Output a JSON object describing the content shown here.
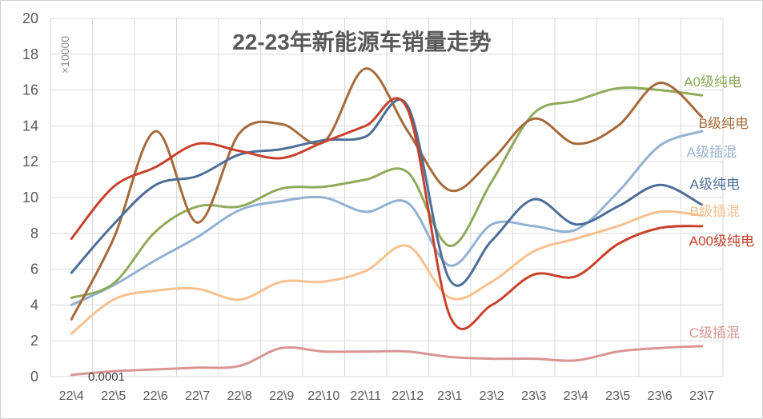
{
  "chart_data": {
    "type": "line",
    "title": "22-23年新能源车销量走势",
    "unit_label": "×10000",
    "annotation": "0.0001",
    "categories": [
      "22\\4",
      "22\\5",
      "22\\6",
      "22\\7",
      "22\\8",
      "22\\9",
      "22\\10",
      "22\\11",
      "22\\12",
      "23\\1",
      "23\\2",
      "23\\3",
      "23\\4",
      "23\\5",
      "23\\6",
      "23\\7"
    ],
    "ylim": [
      0,
      20
    ],
    "yticks": [
      "0",
      "2",
      "4",
      "6",
      "8",
      "10",
      "12",
      "14",
      "16",
      "18",
      "20"
    ],
    "grid": true,
    "series": [
      {
        "name": "A0级纯电",
        "color": "#8faa5a",
        "values": [
          4.4,
          5.2,
          8.1,
          9.5,
          9.5,
          10.5,
          10.6,
          11.0,
          11.4,
          7.3,
          10.9,
          14.7,
          15.4,
          16.1,
          16.0,
          15.7
        ]
      },
      {
        "name": "B级纯电",
        "color": "#a56a3a",
        "values": [
          3.2,
          7.7,
          13.7,
          8.6,
          13.6,
          14.1,
          13.1,
          17.2,
          13.7,
          10.4,
          12.1,
          14.4,
          13.0,
          14.0,
          16.4,
          14.5
        ]
      },
      {
        "name": "A级插混",
        "color": "#93b1d2",
        "values": [
          4.0,
          5.1,
          6.5,
          7.8,
          9.3,
          9.8,
          10.0,
          9.2,
          9.7,
          6.2,
          8.5,
          8.4,
          8.2,
          10.3,
          12.9,
          13.7
        ]
      },
      {
        "name": "A级纯电",
        "color": "#4c6e98",
        "values": [
          5.8,
          8.5,
          10.7,
          11.2,
          12.4,
          12.7,
          13.2,
          13.4,
          15.1,
          5.4,
          7.6,
          9.9,
          8.5,
          9.5,
          10.7,
          9.6
        ]
      },
      {
        "name": "B级插混",
        "color": "#f8c08f",
        "values": [
          2.4,
          4.3,
          4.8,
          4.9,
          4.3,
          5.3,
          5.3,
          5.9,
          7.3,
          4.4,
          5.3,
          7.0,
          7.7,
          8.4,
          9.2,
          9.0
        ]
      },
      {
        "name": "A00级纯电",
        "color": "#c8412c",
        "values": [
          7.7,
          10.6,
          11.7,
          13.0,
          12.6,
          12.2,
          13.1,
          14.0,
          14.9,
          3.4,
          4.0,
          5.7,
          5.6,
          7.4,
          8.3,
          8.4
        ]
      },
      {
        "name": "C级插混",
        "color": "#d99494",
        "values": [
          0.1,
          0.3,
          0.4,
          0.5,
          0.6,
          1.6,
          1.4,
          1.4,
          1.4,
          1.1,
          1.0,
          1.0,
          0.9,
          1.4,
          1.6,
          1.7
        ]
      }
    ]
  }
}
